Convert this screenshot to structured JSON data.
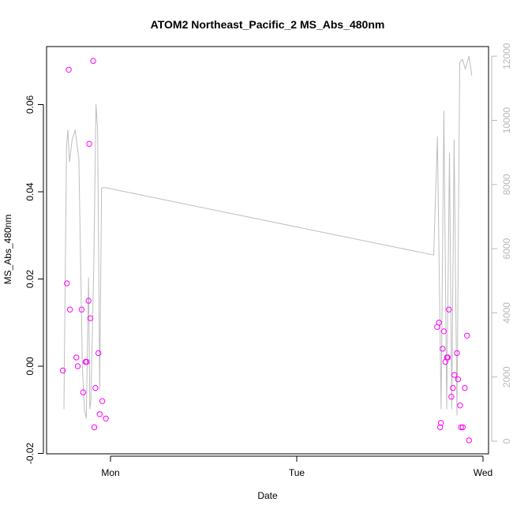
{
  "chart_data": {
    "type": "scatter",
    "title": "ATOM2 Northeast_Pacific_2 MS_Abs_480nm",
    "xlabel": "Date",
    "ylabel": "MS_Abs_480nm",
    "y2label": "",
    "x_ticks": [
      {
        "label": "Mon",
        "value": 0
      },
      {
        "label": "Tue",
        "value": 1
      },
      {
        "label": "Wed",
        "value": 2
      }
    ],
    "y_ticks": [
      {
        "label": "-0.02",
        "value": -0.02
      },
      {
        "label": "0.00",
        "value": 0.0
      },
      {
        "label": "0.02",
        "value": 0.02
      },
      {
        "label": "0.04",
        "value": 0.04
      },
      {
        "label": "0.06",
        "value": 0.06
      }
    ],
    "y2_ticks": [
      {
        "label": "0",
        "value": 0
      },
      {
        "label": "2000",
        "value": 2000
      },
      {
        "label": "4000",
        "value": 4000
      },
      {
        "label": "6000",
        "value": 6000
      },
      {
        "label": "8000",
        "value": 8000
      },
      {
        "label": "10000",
        "value": 10000
      },
      {
        "label": "12000",
        "value": 12000
      }
    ],
    "ylim": [
      -0.02,
      0.07
    ],
    "y2lim": [
      0,
      12000
    ],
    "xlim": [
      -0.29,
      2.04
    ],
    "colors": {
      "points": "#ff00ff",
      "line": "#bebebe",
      "right_axis": "#b8b8b8"
    },
    "series": [
      {
        "type": "points",
        "x": [
          -0.256,
          -0.234,
          -0.224,
          -0.218,
          -0.183,
          -0.176,
          -0.155,
          -0.147,
          -0.134,
          -0.128,
          -0.118,
          -0.114,
          -0.108,
          -0.093,
          -0.087,
          -0.081,
          -0.065,
          -0.058,
          -0.044,
          -0.025,
          1.754,
          1.764,
          1.77,
          1.774,
          1.783,
          1.79,
          1.798,
          1.806,
          1.811,
          1.817,
          1.83,
          1.838,
          1.846,
          1.86,
          1.866,
          1.877,
          1.882,
          1.891,
          1.902,
          1.914,
          1.925
        ],
        "y": [
          -0.001,
          0.019,
          0.068,
          0.013,
          0.002,
          0.0,
          0.013,
          -0.006,
          0.001,
          0.001,
          0.015,
          0.051,
          0.011,
          0.07,
          -0.014,
          -0.005,
          0.003,
          -0.011,
          -0.008,
          -0.012,
          0.009,
          0.01,
          -0.014,
          -0.013,
          0.004,
          0.008,
          0.001,
          0.002,
          0.002,
          0.013,
          -0.007,
          -0.005,
          -0.002,
          0.003,
          -0.003,
          -0.009,
          -0.014,
          -0.014,
          -0.005,
          0.007,
          -0.017
        ]
      },
      {
        "type": "line",
        "axis": "right",
        "x": [
          -0.25,
          -0.236,
          -0.229,
          -0.22,
          -0.206,
          -0.19,
          -0.17,
          -0.151,
          -0.14,
          -0.13,
          -0.118,
          -0.111,
          -0.105,
          -0.09,
          -0.078,
          -0.069,
          -0.058,
          -0.048,
          -0.025,
          1.735,
          1.755,
          1.775,
          1.79,
          1.805,
          1.82,
          1.832,
          1.845,
          1.86,
          1.875,
          1.89,
          1.905,
          1.925,
          1.94
        ],
        "y": [
          1000,
          9200,
          9700,
          8700,
          9400,
          9700,
          8800,
          2300,
          1000,
          700,
          5100,
          1000,
          1300,
          5400,
          10500,
          9700,
          1600,
          7900,
          7900,
          5800,
          9500,
          1000,
          10300,
          1000,
          9000,
          1000,
          9400,
          800,
          11800,
          11900,
          11600,
          12000,
          11400
        ]
      }
    ]
  }
}
